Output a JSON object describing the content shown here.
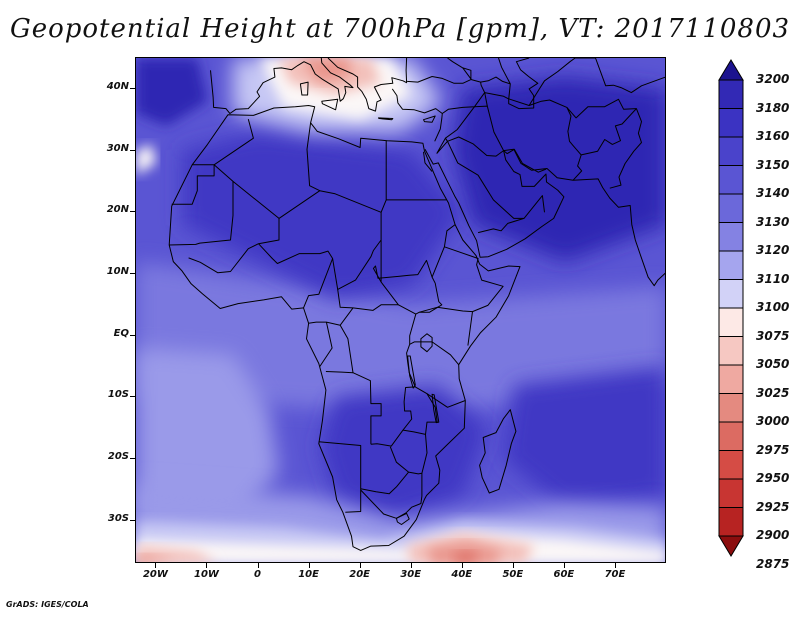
{
  "title": "Geopotential Height at 700hPa [gpm], VT: 2017110803",
  "footer": "GrADS: IGES/COLA",
  "map": {
    "lon_range": [
      -24,
      80
    ],
    "lat_range": [
      -37,
      45
    ],
    "lat_labels": [
      {
        "value": 40,
        "text": "40N"
      },
      {
        "value": 30,
        "text": "30N"
      },
      {
        "value": 20,
        "text": "20N"
      },
      {
        "value": 10,
        "text": "10N"
      },
      {
        "value": 0,
        "text": "EQ"
      },
      {
        "value": -10,
        "text": "10S"
      },
      {
        "value": -20,
        "text": "20S"
      },
      {
        "value": -30,
        "text": "30S"
      }
    ],
    "lon_labels": [
      {
        "value": -20,
        "text": "20W"
      },
      {
        "value": -10,
        "text": "10W"
      },
      {
        "value": 0,
        "text": "0"
      },
      {
        "value": 10,
        "text": "10E"
      },
      {
        "value": 20,
        "text": "20E"
      },
      {
        "value": 30,
        "text": "30E"
      },
      {
        "value": 40,
        "text": "40E"
      },
      {
        "value": 50,
        "text": "50E"
      },
      {
        "value": 60,
        "text": "60E"
      },
      {
        "value": 70,
        "text": "70E"
      }
    ]
  },
  "colorbar": {
    "levels": [
      "3200",
      "3180",
      "3160",
      "3150",
      "3140",
      "3130",
      "3120",
      "3110",
      "3100",
      "3075",
      "3050",
      "3025",
      "3000",
      "2975",
      "2950",
      "2925",
      "2900",
      "2875"
    ],
    "colors": [
      "#2a21a6",
      "#3229b5",
      "#3b33c2",
      "#4a43cb",
      "#5a55d3",
      "#6b68da",
      "#8482e3",
      "#a5a5ee",
      "#d2d2f7",
      "#fde9e6",
      "#f6c8c2",
      "#efa9a1",
      "#e48a80",
      "#dc6b62",
      "#d54c45",
      "#c83532",
      "#b72322",
      "#a41718"
    ],
    "top_arrow_color": "#1c138f",
    "bottom_arrow_color": "#8b0d0e"
  },
  "regions": {
    "background": "#5a55d3",
    "darker": "#3f39c4",
    "darkest": "#2f28b3",
    "light": "#7a78df",
    "lighter": "#9a9ae9",
    "pale": "#c6c7f4",
    "white": "#fbf7f7",
    "pink": "#f3c0ba",
    "salmon": "#e9958c",
    "red": "#dd6d63"
  }
}
